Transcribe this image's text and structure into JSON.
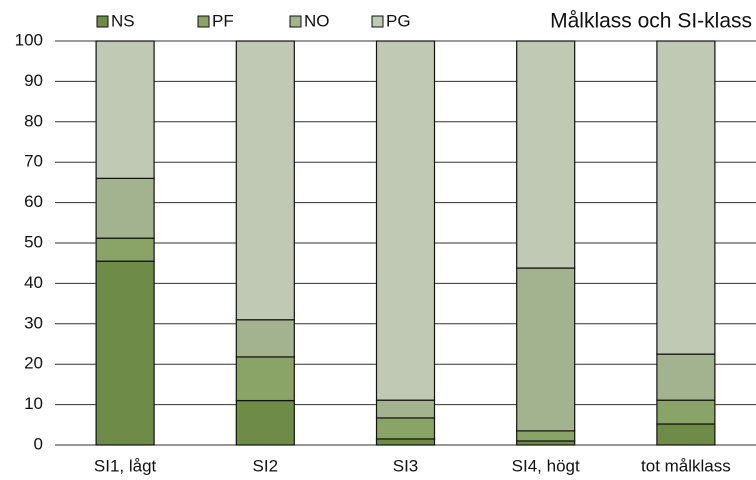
{
  "chart_data": {
    "type": "stacked_bar",
    "title": "Målklass och SI-klass",
    "categories": [
      "SI1, lågt",
      "SI2",
      "SI3",
      "SI4, högt",
      "tot målklass"
    ],
    "series": [
      {
        "name": "NS",
        "color": "#6e8b48",
        "values": [
          45.5,
          11,
          1.5,
          1,
          5.2
        ]
      },
      {
        "name": "PF",
        "color": "#8aa468",
        "values": [
          5.7,
          10.8,
          5.2,
          2.5,
          5.9
        ]
      },
      {
        "name": "NO",
        "color": "#a3b38f",
        "values": [
          14.8,
          9.2,
          4.4,
          40.3,
          11.4
        ]
      },
      {
        "name": "PG",
        "color": "#c0c9b4",
        "values": [
          34,
          69,
          88.9,
          56.2,
          77.5
        ]
      }
    ],
    "ylim": [
      0,
      100
    ],
    "yticks": [
      0,
      10,
      20,
      30,
      40,
      50,
      60,
      70,
      80,
      90,
      100
    ],
    "grid": true
  }
}
